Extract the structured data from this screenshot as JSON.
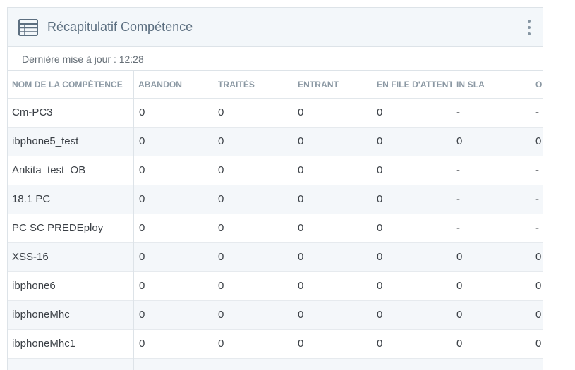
{
  "widget": {
    "title": "Récapitulatif Compétence",
    "icon": "table-icon",
    "menu_icon": "kebab-menu-icon",
    "last_update": "Dernière mise à jour : 12:28"
  },
  "table": {
    "columns": [
      "NOM DE LA COMPÉTENCE",
      "ABANDON",
      "TRAITÉS",
      "ENTRANT",
      "EN FILE D'ATTENTE",
      "IN SLA",
      "O"
    ],
    "rows": [
      [
        "Cm-PC3",
        "0",
        "0",
        "0",
        "0",
        "-",
        "-"
      ],
      [
        "ibphone5_test",
        "0",
        "0",
        "0",
        "0",
        "0",
        "0"
      ],
      [
        "Ankita_test_OB",
        "0",
        "0",
        "0",
        "0",
        "-",
        "-"
      ],
      [
        "18.1 PC",
        "0",
        "0",
        "0",
        "0",
        "-",
        "-"
      ],
      [
        "PC SC PREDEploy",
        "0",
        "0",
        "0",
        "0",
        "-",
        "-"
      ],
      [
        "XSS-16",
        "0",
        "0",
        "0",
        "0",
        "0",
        "0"
      ],
      [
        "ibphone6",
        "0",
        "0",
        "0",
        "0",
        "0",
        "0"
      ],
      [
        "ibphoneMhc",
        "0",
        "0",
        "0",
        "0",
        "0",
        "0"
      ],
      [
        "ibphoneMhc1",
        "0",
        "0",
        "0",
        "0",
        "0",
        "0"
      ],
      [
        "",
        "",
        "",
        "",
        "",
        "",
        ""
      ]
    ]
  }
}
